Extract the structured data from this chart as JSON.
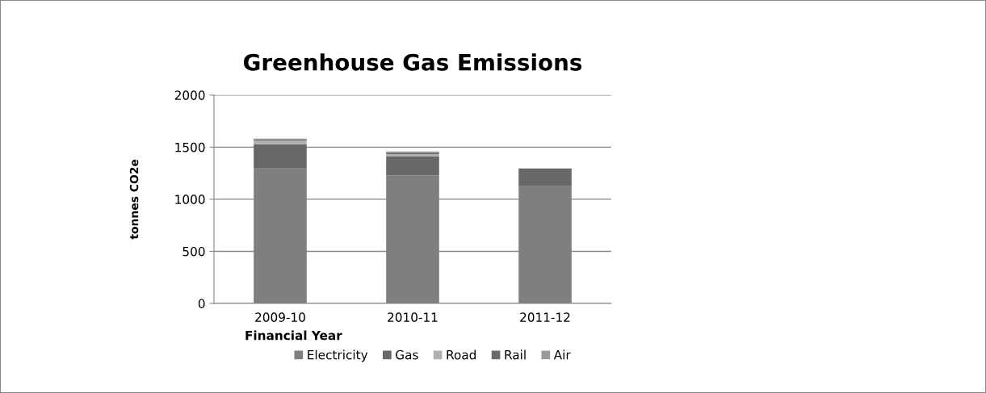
{
  "chart_data": {
    "type": "bar",
    "title": "Greenhouse Gas Emissions",
    "xlabel": "Financial Year",
    "ylabel": "tonnes CO2e",
    "categories": [
      "2009-10",
      "2010-11",
      "2011-12"
    ],
    "stacked": true,
    "series": [
      {
        "name": "Electricity",
        "color": "#7f7f7f",
        "values": [
          1296,
          1227,
          1125
        ]
      },
      {
        "name": "Gas",
        "color": "#686868",
        "values": [
          232,
          186,
          171
        ]
      },
      {
        "name": "Road",
        "color": "#b0b0b0",
        "values": [
          36,
          18,
          0
        ]
      },
      {
        "name": "Rail",
        "color": "#6a6a6a",
        "values": [
          10,
          15,
          0
        ]
      },
      {
        "name": "Air",
        "color": "#9a9a9a",
        "values": [
          8,
          13,
          0
        ]
      }
    ],
    "ylim": [
      0,
      2000
    ],
    "yticks": [
      0,
      500,
      1000,
      1500,
      2000
    ],
    "grid": "y",
    "legend": "bottom"
  }
}
